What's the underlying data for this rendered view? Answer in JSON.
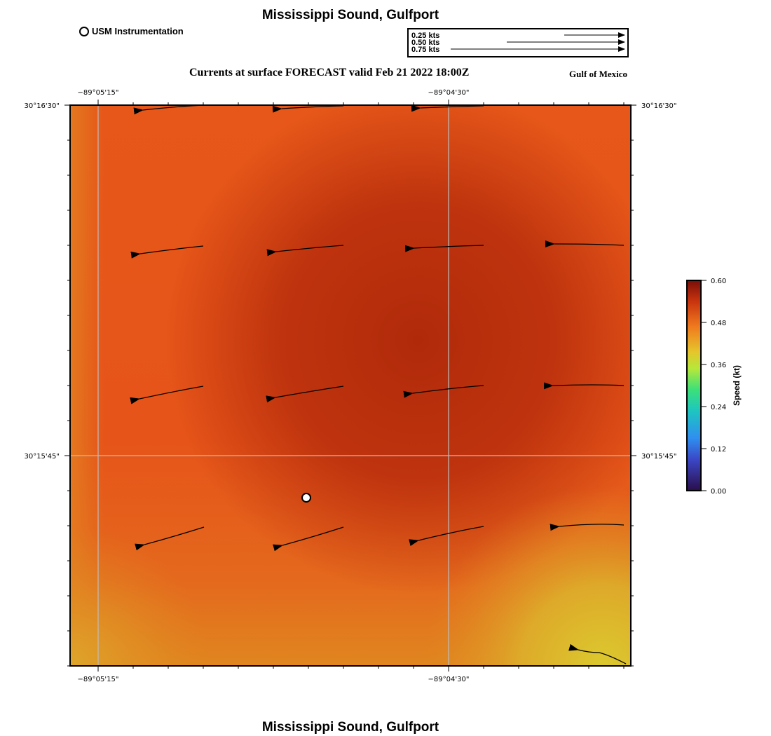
{
  "title": "Mississippi Sound, Gulfport",
  "subtitle": "Currents at surface FORECAST valid Feb 21 2022 18:00Z",
  "region_label": "Gulf of Mexico",
  "legend": {
    "station_label": "USM Instrumentation",
    "scale_labels": [
      "0.25 kts",
      "0.50 kts",
      "0.75 kts"
    ],
    "scale_values_kts": [
      0.25,
      0.5,
      0.75
    ]
  },
  "axes": {
    "lon_ticks": [
      "−89°05'15\"",
      "−89°04'30\""
    ],
    "lat_ticks": [
      "30°16'30\"",
      "30°15'45\""
    ]
  },
  "colorbar": {
    "label": "Speed (kt)",
    "ticks": [
      "0.60",
      "0.48",
      "0.36",
      "0.24",
      "0.12",
      "0.00"
    ],
    "min": 0.0,
    "max": 0.6
  },
  "colors": {
    "field_dark": "#b32a0a",
    "field_mid": "#e9531a",
    "field_light": "#e27a20",
    "field_yellow": "#dcc32c",
    "grid": "#bdbdbd"
  },
  "vectors_description_rows": 5,
  "vectors_description_cols": 4
}
